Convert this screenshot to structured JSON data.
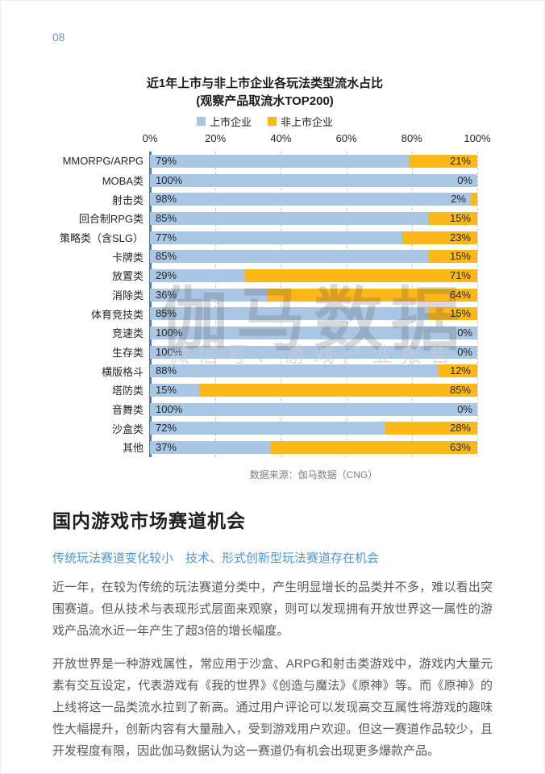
{
  "page_number": "08",
  "chart": {
    "title": "近1年上市与非上市企业各玩法类型流水占比",
    "subtitle": "(观察产品取流水TOP200)",
    "source": "数据来源：伽马数据（CNG）",
    "watermark": {
      "line1": "伽马数据",
      "line2": "微信号：游戏产业报告"
    }
  },
  "chart_data": {
    "type": "bar",
    "stacked": true,
    "orientation": "horizontal",
    "title": "近1年上市与非上市企业各玩法类型流水占比",
    "subtitle": "(观察产品取流水TOP200)",
    "categories": [
      "MMORPG/ARPG",
      "MOBA类",
      "射击类",
      "回合制RPG类",
      "策略类（含SLG）",
      "卡牌类",
      "放置类",
      "消除类",
      "体育竞技类",
      "竞速类",
      "生存类",
      "横版格斗",
      "塔防类",
      "音舞类",
      "沙盒类",
      "其他"
    ],
    "series": [
      {
        "name": "上市企业",
        "color": "#a9c6e5",
        "values": [
          79,
          100,
          98,
          85,
          77,
          85,
          29,
          36,
          85,
          100,
          100,
          88,
          15,
          100,
          72,
          37
        ]
      },
      {
        "name": "非上市企业",
        "color": "#fbb816",
        "values": [
          21,
          0,
          2,
          15,
          23,
          15,
          71,
          64,
          15,
          0,
          0,
          12,
          85,
          0,
          28,
          63
        ]
      }
    ],
    "x_ticks": [
      "0%",
      "20%",
      "40%",
      "60%",
      "80%",
      "100%"
    ],
    "xlim": [
      0,
      100
    ],
    "value_suffix": "%",
    "legend_position": "top",
    "grid": "vertical-dashed"
  },
  "section": {
    "heading": "国内游戏市场赛道机会",
    "subheading": "传统玩法赛道变化较小　技术、形式创新型玩法赛道存在机会",
    "paragraphs": [
      "近一年，在较为传统的玩法赛道分类中，产生明显增长的品类并不多，难以看出突围赛道。但从技术与表现形式层面来观察，则可以发现拥有开放世界这一属性的游戏产品流水近一年产生了超3倍的增长幅度。",
      "开放世界是一种游戏属性，常应用于沙盒、ARPG和射击类游戏中，游戏内大量元素有交互设定，代表游戏有《我的世界》《创造与魔法》《原神》等。而《原神》的上线将这一品类流水拉到了新高。通过用户评论可以发现高交互属性将游戏的趣味性大幅提升，创新内容有大量融入，受到游戏用户欢迎。但这一赛道作品较少，且开发程度有限，因此伽马数据认为这一赛道仍有机会出现更多爆款产品。"
    ]
  }
}
